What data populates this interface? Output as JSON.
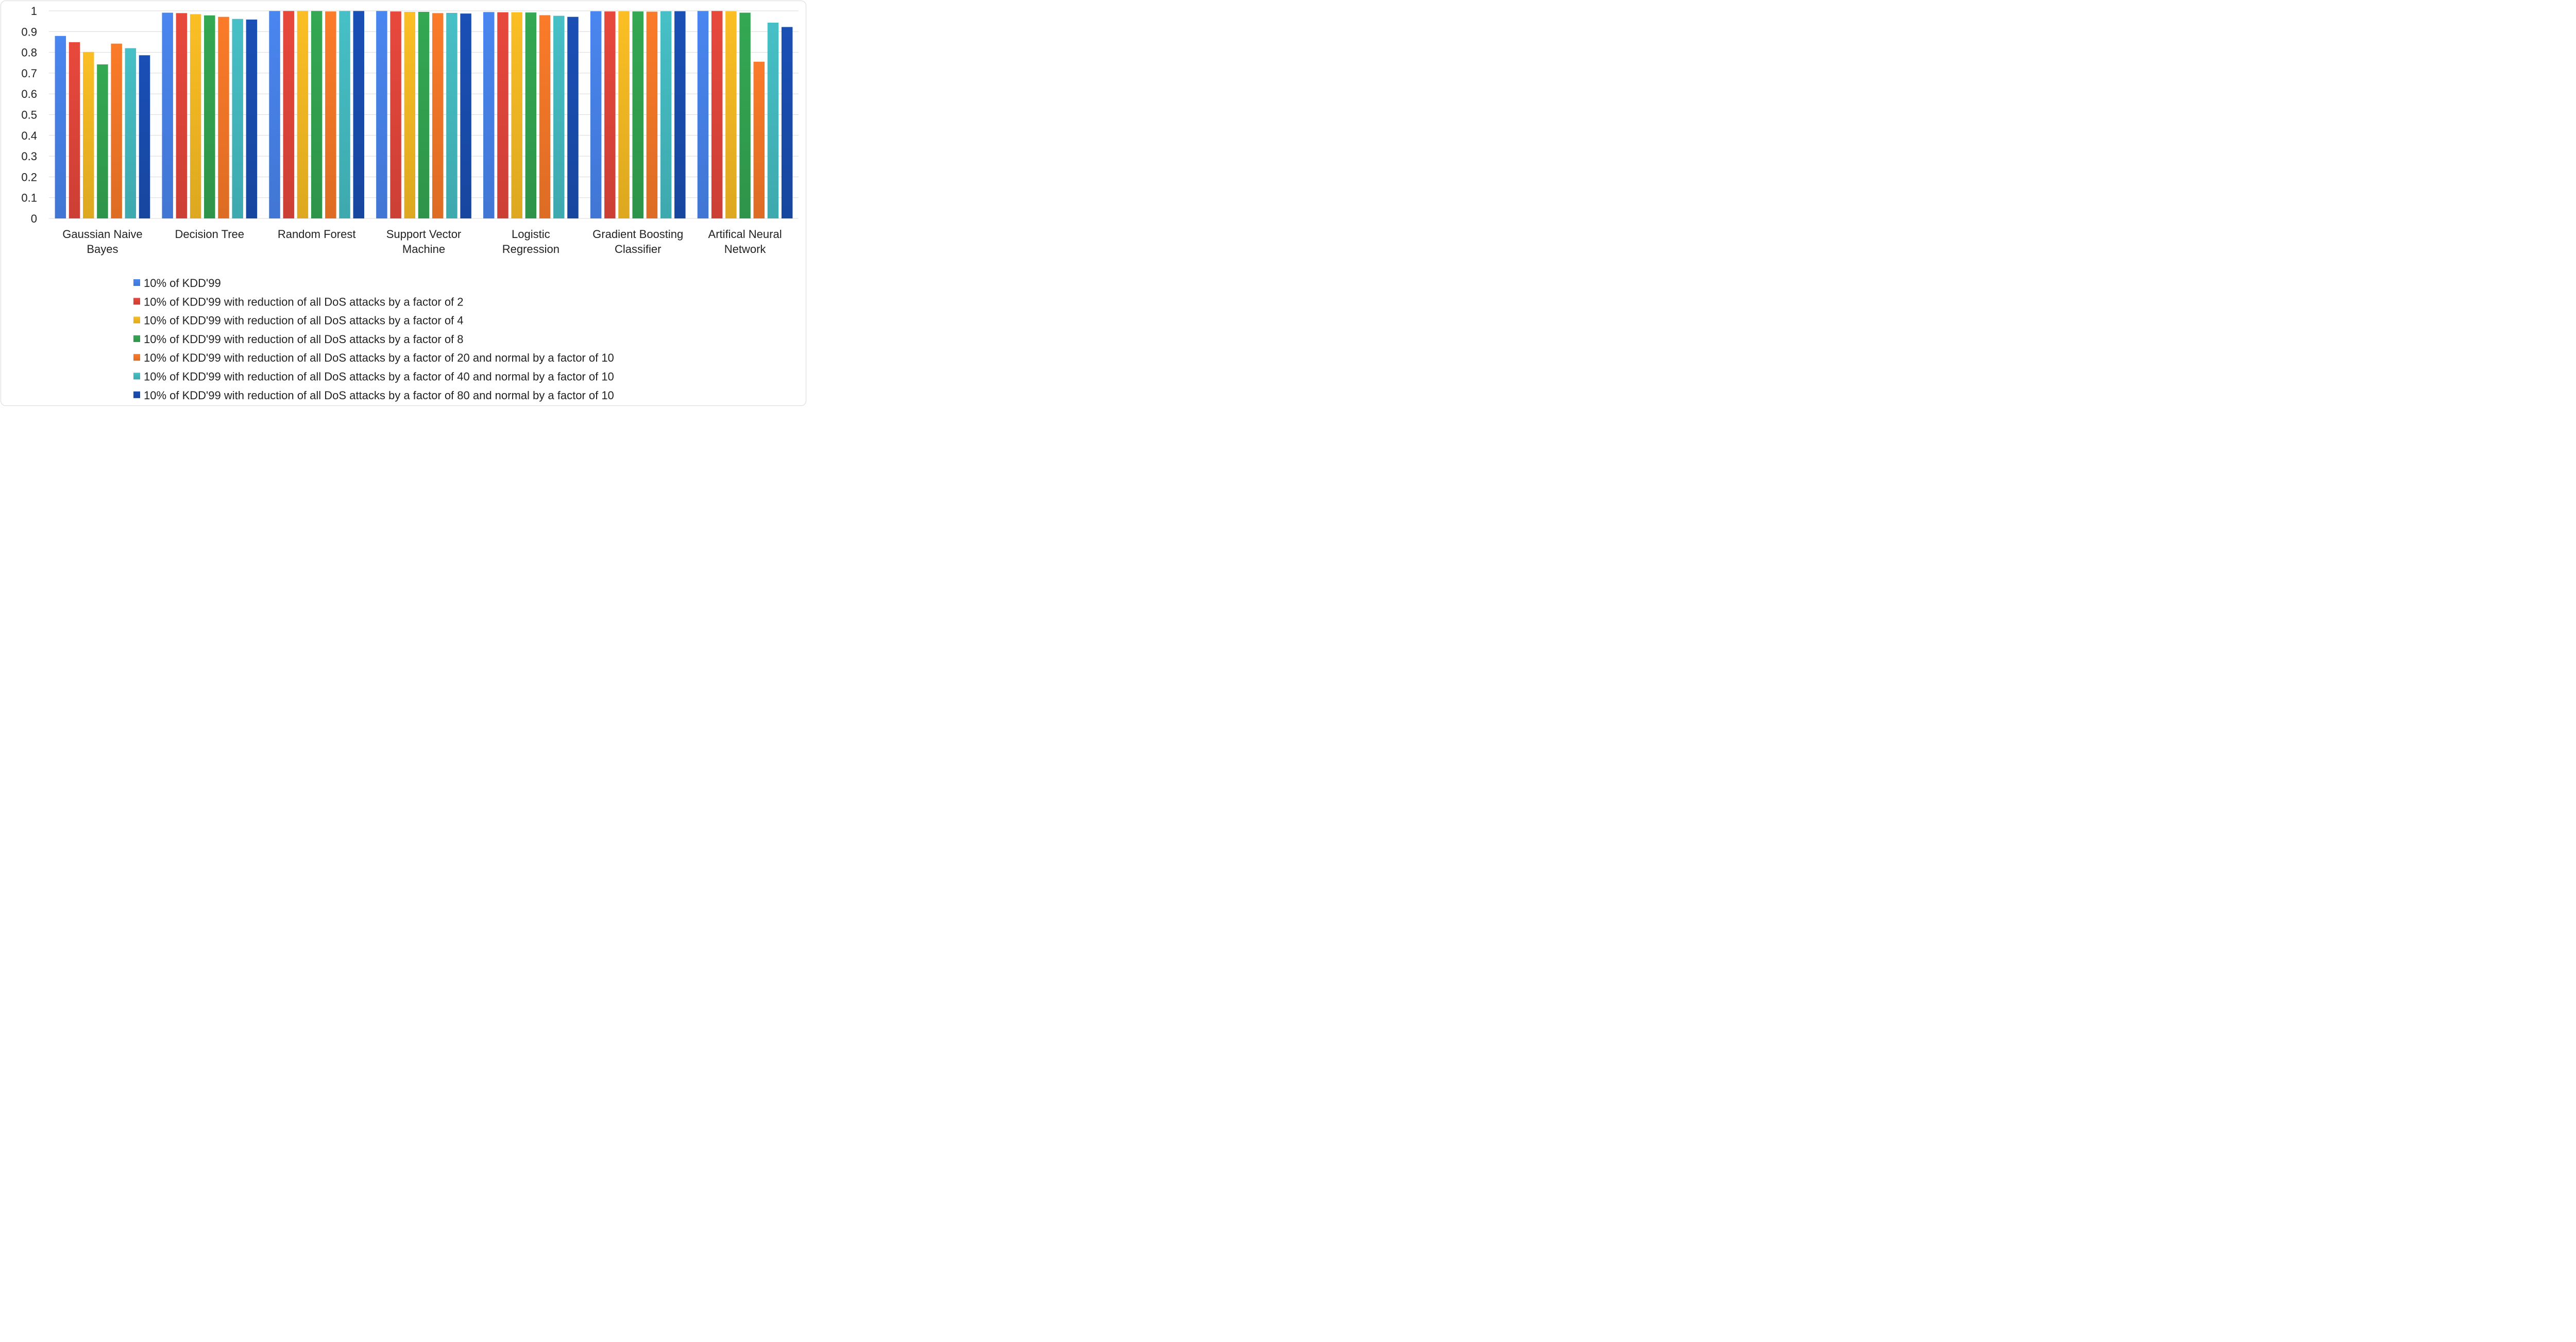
{
  "chart_data": {
    "type": "bar",
    "title": "",
    "xlabel": "",
    "ylabel": "",
    "ylim": [
      0,
      1
    ],
    "yticks": [
      "0",
      "0.1",
      "0.2",
      "0.3",
      "0.4",
      "0.5",
      "0.6",
      "0.7",
      "0.8",
      "0.9",
      "1"
    ],
    "grid": "horizontal",
    "legend_position": "bottom",
    "categories": [
      [
        "Gaussian Naive",
        "Bayes"
      ],
      [
        "Decision Tree"
      ],
      [
        "Random Forest"
      ],
      [
        "Support Vector",
        "Machine"
      ],
      [
        "Logistic",
        "Regression"
      ],
      [
        "Gradient Boosting",
        "Classifier"
      ],
      [
        "Artifical Neural",
        "Network"
      ]
    ],
    "series": [
      {
        "name": "10% of KDD'99",
        "color": "#4a86f0",
        "values": [
          0.879,
          0.991,
          0.999,
          0.999,
          0.994,
          0.998,
          0.999
        ]
      },
      {
        "name": "10% of KDD'99 with reduction of all DoS attacks by a factor of 2",
        "color": "#e8483c",
        "values": [
          0.849,
          0.989,
          0.999,
          0.997,
          0.993,
          0.997,
          0.999
        ]
      },
      {
        "name": "10% of KDD'99 with reduction of all DoS attacks by a factor of 4",
        "color": "#fbbf24",
        "values": [
          0.802,
          0.984,
          0.999,
          0.995,
          0.993,
          0.998,
          0.998
        ]
      },
      {
        "name": "10% of KDD'99 with reduction of all DoS attacks by a factor of 8",
        "color": "#34a853",
        "values": [
          0.742,
          0.978,
          0.999,
          0.995,
          0.992,
          0.997,
          0.991
        ]
      },
      {
        "name": "10% of KDD'99 with reduction of all DoS attacks by a factor of 20 and normal by a factor of 10",
        "color": "#fb7b29",
        "values": [
          0.842,
          0.971,
          0.997,
          0.989,
          0.979,
          0.996,
          0.755
        ]
      },
      {
        "name": "10% of KDD'99 with reduction of all DoS attacks by a factor of 40 and normal by a factor of 10",
        "color": "#46c0c6",
        "values": [
          0.82,
          0.961,
          0.999,
          0.99,
          0.976,
          0.998,
          0.943
        ]
      },
      {
        "name": "10% of KDD'99 with reduction of all DoS attacks by a factor of 80 and normal by a factor of 10",
        "color": "#1a4fb5",
        "values": [
          0.786,
          0.958,
          0.999,
          0.987,
          0.971,
          0.998,
          0.922
        ]
      }
    ]
  }
}
